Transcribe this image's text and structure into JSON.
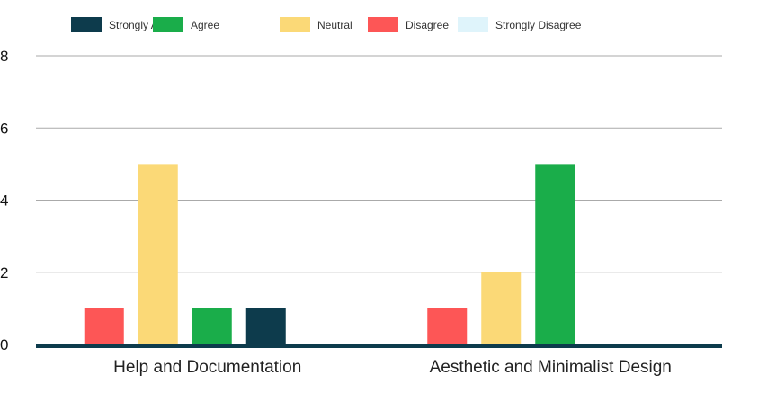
{
  "chart_data": {
    "type": "bar",
    "categories": [
      "Help and Documentation",
      "Aesthetic and Minimalist Design"
    ],
    "series": [
      {
        "name": "Strongly Agree",
        "color": "#0d3b4c",
        "values": [
          1,
          0
        ]
      },
      {
        "name": "Agree",
        "color": "#1aad4a",
        "values": [
          1,
          5
        ]
      },
      {
        "name": "Neutral",
        "color": "#fbd977",
        "values": [
          5,
          2
        ]
      },
      {
        "name": "Disagree",
        "color": "#fd5656",
        "values": [
          1,
          1
        ]
      },
      {
        "name": "Strongly Disagree",
        "color": "#dff4fb",
        "values": [
          0,
          0
        ]
      }
    ],
    "bar_order": [
      "Disagree",
      "Neutral",
      "Agree",
      "Strongly Agree",
      "Strongly Disagree"
    ],
    "yticks": [
      "0",
      "2",
      "4",
      "6",
      "8"
    ],
    "ylim": [
      0,
      8
    ],
    "grid": true,
    "legend_position": "top",
    "baseline_color": "#0d3b4c",
    "grid_color": "#aaaaaa"
  }
}
